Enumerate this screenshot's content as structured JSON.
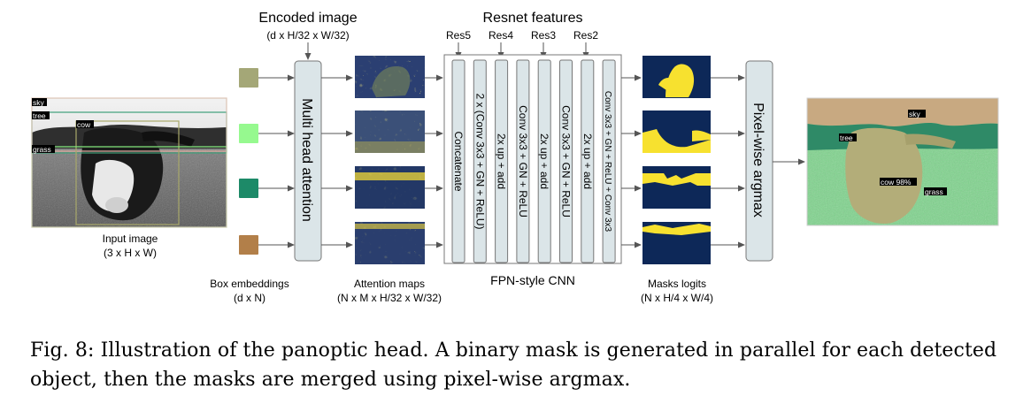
{
  "figure": {
    "encoded_title": "Encoded image",
    "encoded_dims": "(d x H/32 x W/32)",
    "resnet_title": "Resnet features",
    "resnet_levels": [
      "Res5",
      "Res4",
      "Res3",
      "Res2"
    ],
    "input_label": "Input image",
    "input_dims": "(3 x H x W)",
    "box_label": "Box embeddings",
    "box_dims": "(d x N)",
    "attn_block": "Multi head attention",
    "attn_maps_label": "Attention maps",
    "attn_maps_dims": "(N x M x H/32 x W/32)",
    "fpn_label": "FPN-style CNN",
    "fpn_columns": [
      "Concatenate",
      "2 x (Conv 3x3 + GN + ReLU)",
      "2x up + add",
      "Conv 3x3 + GN + ReLU",
      "2x up + add",
      "Conv 3x3 + GN + ReLU",
      "2x up + add",
      "Conv 3x3 + GN + ReLU + Conv 3x3"
    ],
    "masks_label": "Masks logits",
    "masks_dims": "(N x H/4 x W/4)",
    "argmax_block": "Pixel-wise argmax",
    "input_tags": [
      "sky",
      "tree",
      "cow",
      "grass"
    ],
    "output_tags": [
      "sky",
      "tree",
      "cow 98%",
      "grass"
    ],
    "colors": {
      "embed_1": "#a4a777",
      "embed_2": "#96f98f",
      "embed_3": "#1d8a68",
      "embed_4": "#b27f49",
      "block_fill": "#dbe5e8",
      "mask_bg": "#0d2858",
      "mask_fg": "#f7e12f"
    }
  },
  "caption": "Fig. 8: Illustration of the panoptic head. A binary mask is generated in parallel for each detected object, then the masks are merged using pixel-wise argmax."
}
